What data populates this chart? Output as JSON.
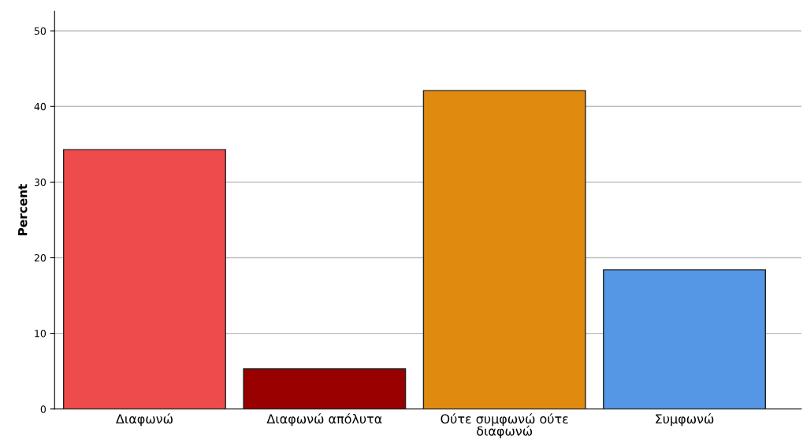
{
  "chart_data": {
    "type": "bar",
    "ylabel": "Percent",
    "categories": [
      "Διαφωνώ",
      "Διαφωνώ απόλυτα",
      "Ούτε συμφωνώ ούτε διαφωνώ",
      "Συμφωνώ"
    ],
    "values": [
      34.3,
      5.3,
      42.1,
      18.4
    ],
    "colors": [
      "#ee4b4d",
      "#990000",
      "#e08a10",
      "#5596e5"
    ],
    "ylim": [
      0,
      52.6
    ],
    "yticks": [
      0,
      10,
      20,
      30,
      40,
      50
    ],
    "grid": "y"
  }
}
